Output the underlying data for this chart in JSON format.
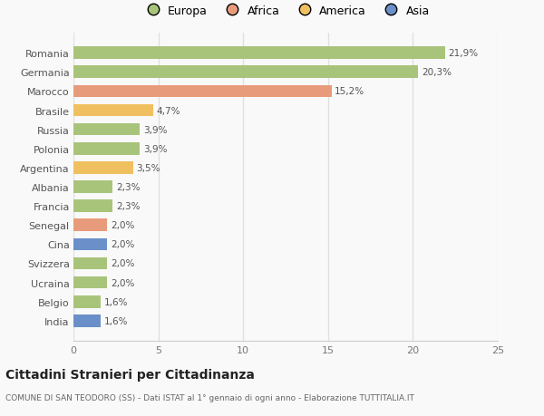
{
  "categories": [
    "India",
    "Belgio",
    "Ucraina",
    "Svizzera",
    "Cina",
    "Senegal",
    "Francia",
    "Albania",
    "Argentina",
    "Polonia",
    "Russia",
    "Brasile",
    "Marocco",
    "Germania",
    "Romania"
  ],
  "values": [
    1.6,
    1.6,
    2.0,
    2.0,
    2.0,
    2.0,
    2.3,
    2.3,
    3.5,
    3.9,
    3.9,
    4.7,
    15.2,
    20.3,
    21.9
  ],
  "labels": [
    "1,6%",
    "1,6%",
    "2,0%",
    "2,0%",
    "2,0%",
    "2,0%",
    "2,3%",
    "2,3%",
    "3,5%",
    "3,9%",
    "3,9%",
    "4,7%",
    "15,2%",
    "20,3%",
    "21,9%"
  ],
  "colors": [
    "#6b8fc9",
    "#a8c47a",
    "#a8c47a",
    "#a8c47a",
    "#6b8fc9",
    "#e89b7a",
    "#a8c47a",
    "#a8c47a",
    "#f0c060",
    "#a8c47a",
    "#a8c47a",
    "#f0c060",
    "#e89b7a",
    "#a8c47a",
    "#a8c47a"
  ],
  "legend_labels": [
    "Europa",
    "Africa",
    "America",
    "Asia"
  ],
  "legend_colors": [
    "#a8c47a",
    "#e89b7a",
    "#f0c060",
    "#6b8fc9"
  ],
  "xlim": [
    0,
    25
  ],
  "xticks": [
    0,
    5,
    10,
    15,
    20,
    25
  ],
  "title": "Cittadini Stranieri per Cittadinanza",
  "subtitle": "COMUNE DI SAN TEODORO (SS) - Dati ISTAT al 1° gennaio di ogni anno - Elaborazione TUTTITALIA.IT",
  "bg_color": "#f9f9f9",
  "grid_color": "#e0e0e0",
  "bar_height": 0.65
}
